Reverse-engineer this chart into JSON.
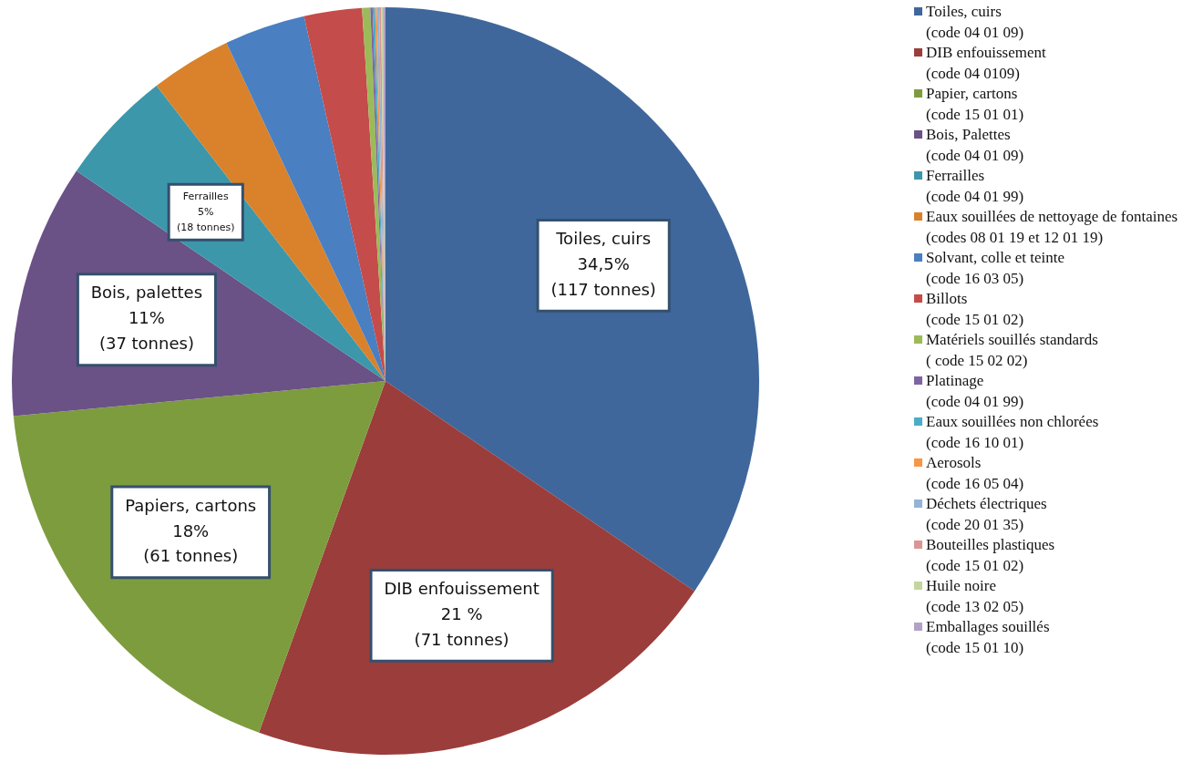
{
  "chart_data": {
    "type": "pie",
    "categories": [
      "Toiles, cuirs\n(code 04 01 09)",
      "DIB enfouissement\n(code 04 0109)",
      "Papier, cartons\n(code 15 01 01)",
      "Bois, Palettes\n(code 04 01 09)",
      "Ferrailles\n(code 04 01 99)",
      "Eaux souillées de nettoyage de fontaines\n(codes 08 01 19 et 12 01 19)",
      "Solvant, colle et teinte\n(code 16 03 05)",
      "Billots\n(code 15 01 02)",
      "Matériels souillés standards\n( code 15 02 02)",
      "Platinage\n(code 04 01 99)",
      "Eaux souillées non chlorées\n(code 16 10 01)",
      "Aerosols\n(code 16 05 04)",
      "Déchets électriques\n(code 20 01 35)",
      "Bouteilles plastiques\n(code 15 01 02)",
      "Huile noire\n(code 13 02 05)",
      "Emballages souillés\n(code 15 01 10)"
    ],
    "values": [
      34.5,
      21,
      18,
      11,
      5,
      3.5,
      3.5,
      2.5,
      0.35,
      0.1,
      0.1,
      0.08,
      0.1,
      0.08,
      0.08,
      0.11
    ],
    "colors": [
      "#3f679b",
      "#9b3d3b",
      "#7d9c3e",
      "#6a5186",
      "#3c97ab",
      "#d9822b",
      "#4a7fc1",
      "#c44c4a",
      "#9bbb59",
      "#8064a2",
      "#4bacc6",
      "#f79646",
      "#95b3d7",
      "#d99694",
      "#c3d69b",
      "#b2a2c7"
    ],
    "value_labels": [
      "Toiles, cuirs\n34,5%\n(117 tonnes)",
      "DIB enfouissement\n21 %\n(71 tonnes)",
      "Papiers, cartons\n18%\n(61 tonnes)",
      "Bois, palettes\n11%\n(37 tonnes)",
      "Ferrailles\n5%\n(18 tonnes)",
      null,
      null,
      null,
      null,
      null,
      null,
      null,
      null,
      null,
      null,
      null
    ],
    "legend": "right"
  }
}
